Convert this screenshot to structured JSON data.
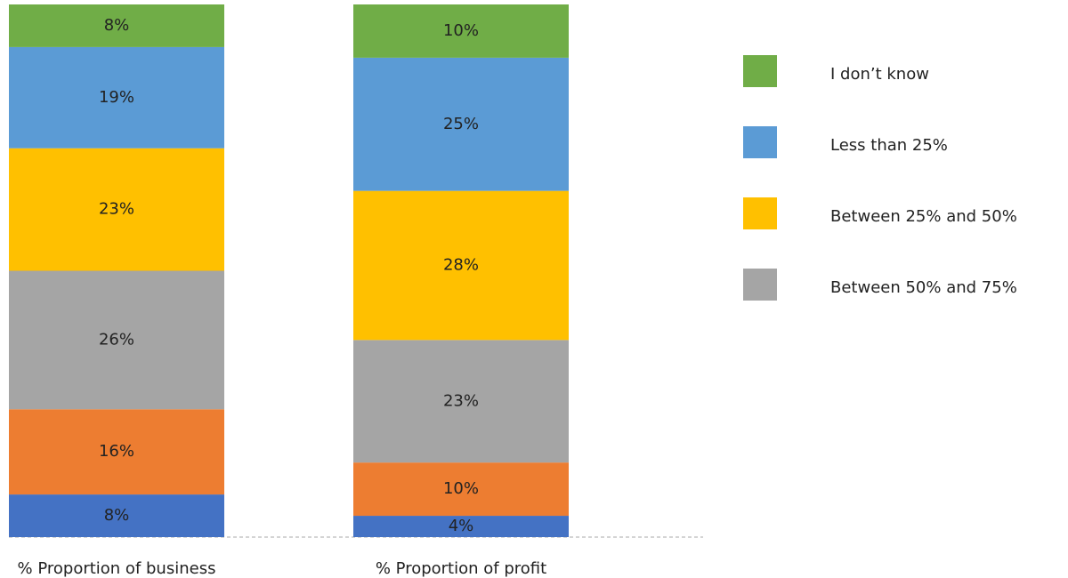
{
  "chart_data": {
    "type": "stacked_bar",
    "categories": [
      "% Proportion of business",
      "% Proportion of profit"
    ],
    "ylim": [
      0,
      100
    ],
    "series": [
      {
        "color": "#4472c4",
        "values": [
          8,
          4
        ],
        "value_labels": [
          "8%",
          "4%"
        ]
      },
      {
        "color": "#ed7d31",
        "values": [
          16,
          10
        ],
        "value_labels": [
          "16%",
          "10%"
        ]
      },
      {
        "name": "Between 50% and 75%",
        "color": "#a5a5a5",
        "values": [
          26,
          23
        ],
        "value_labels": [
          "26%",
          "23%"
        ]
      },
      {
        "name": "Between 25% and 50%",
        "color": "#ffc000",
        "values": [
          23,
          28
        ],
        "value_labels": [
          "23%",
          "28%"
        ]
      },
      {
        "name": "Less than 25%",
        "color": "#5b9bd5",
        "values": [
          19,
          25
        ],
        "value_labels": [
          "19%",
          "25%"
        ]
      },
      {
        "name": "I don’t know",
        "color": "#70ad47",
        "values": [
          8,
          10
        ],
        "value_labels": [
          "8%",
          "10%"
        ]
      }
    ]
  }
}
